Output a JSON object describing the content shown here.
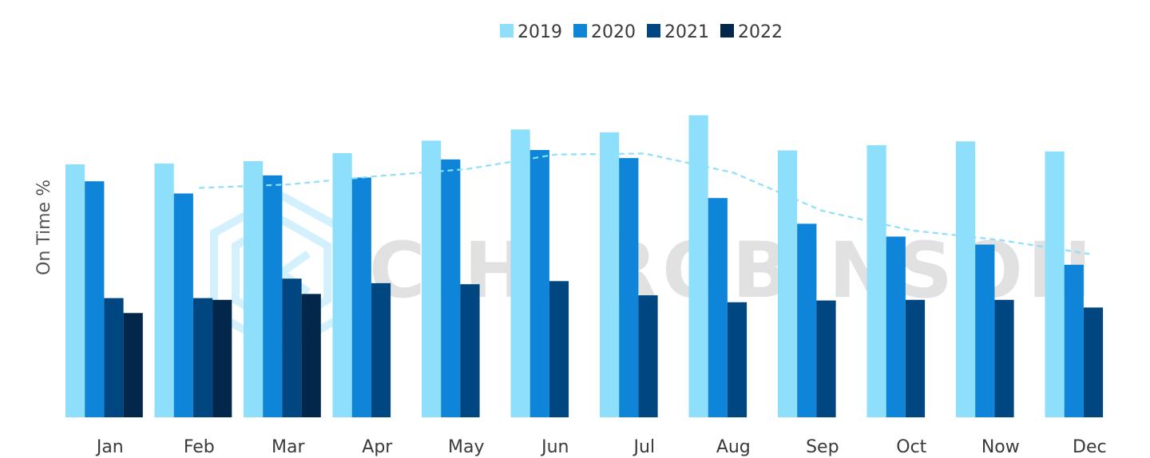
{
  "chart_data": {
    "type": "bar",
    "title": "",
    "xlabel": "",
    "ylabel": "On Time %",
    "categories": [
      "Jan",
      "Feb",
      "Mar",
      "Apr",
      "May",
      "Jun",
      "Jul",
      "Aug",
      "Sep",
      "Oct",
      "Now",
      "Dec"
    ],
    "series": [
      {
        "name": "2019",
        "color": "#8ddffb",
        "values": [
          72.8,
          73.0,
          73.7,
          76.0,
          79.6,
          82.8,
          82.0,
          86.9,
          76.8,
          78.3,
          79.4,
          76.5
        ]
      },
      {
        "name": "2020",
        "color": "#0e85d8",
        "values": [
          67.9,
          64.4,
          69.6,
          69.0,
          74.2,
          76.9,
          74.6,
          63.1,
          55.7,
          52.0,
          49.7,
          43.9
        ]
      },
      {
        "name": "2021",
        "color": "#004680",
        "values": [
          34.3,
          34.3,
          39.9,
          38.6,
          38.3,
          39.2,
          35.1,
          33.1,
          33.6,
          33.8,
          33.8,
          31.6
        ]
      },
      {
        "name": "2022",
        "color": "#03274a",
        "values": [
          30.0,
          33.8,
          35.5,
          null,
          null,
          null,
          null,
          null,
          null,
          null,
          null,
          null
        ]
      }
    ],
    "trendline": {
      "series": "2019",
      "style": "dashed",
      "color": "#8ddffb",
      "categories": [
        "Feb",
        "Mar",
        "Apr",
        "May",
        "Jun",
        "Jul",
        "Aug",
        "Sep",
        "Oct",
        "Now",
        "Dec"
      ],
      "values": [
        66.0,
        67.0,
        69.4,
        71.4,
        75.6,
        75.9,
        70.4,
        59.4,
        53.8,
        51.0,
        47.0
      ]
    },
    "ylim": [
      0,
      104
    ],
    "grid": false,
    "legend_position": "top-center",
    "watermark": "C.H. ROBINSON"
  }
}
